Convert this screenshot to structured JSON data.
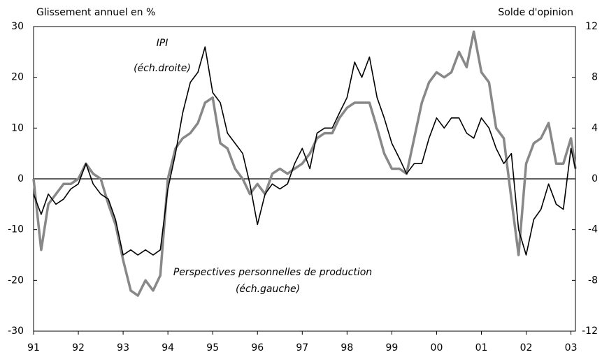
{
  "chart_data": {
    "type": "line",
    "y_label": "Glissement annuel en %",
    "y2_label": "Solde d'opinion",
    "x": [
      1991.0,
      1991.17,
      1991.33,
      1991.5,
      1991.67,
      1991.83,
      1992.0,
      1992.17,
      1992.33,
      1992.5,
      1992.67,
      1992.83,
      1993.0,
      1993.17,
      1993.33,
      1993.5,
      1993.67,
      1993.83,
      1994.0,
      1994.17,
      1994.33,
      1994.5,
      1994.67,
      1994.83,
      1995.0,
      1995.17,
      1995.33,
      1995.5,
      1995.67,
      1995.83,
      1996.0,
      1996.17,
      1996.33,
      1996.5,
      1996.67,
      1996.83,
      1997.0,
      1997.17,
      1997.33,
      1997.5,
      1997.67,
      1997.83,
      1998.0,
      1998.17,
      1998.33,
      1998.5,
      1998.67,
      1998.83,
      1999.0,
      1999.17,
      1999.33,
      1999.5,
      1999.67,
      1999.83,
      2000.0,
      2000.17,
      2000.33,
      2000.5,
      2000.67,
      2000.83,
      2001.0,
      2001.17,
      2001.33,
      2001.5,
      2001.67,
      2001.83,
      2002.0,
      2002.17,
      2002.33,
      2002.5,
      2002.67,
      2002.83,
      2003.0,
      2003.1
    ],
    "series": [
      {
        "name": "Perspectives personnelles de production",
        "note": "(éch.gauche)",
        "color": "#888888",
        "width": 3.5,
        "values": [
          0,
          -14,
          -5,
          -3,
          -1,
          -1,
          0,
          3,
          1,
          0,
          -5,
          -9,
          -16,
          -22,
          -23,
          -20,
          -22,
          -19,
          0,
          6,
          8,
          9,
          11,
          15,
          16,
          7,
          6,
          2,
          0,
          -3,
          -1,
          -3,
          1,
          2,
          1,
          2,
          3,
          5,
          8,
          9,
          9,
          12,
          14,
          15,
          15,
          15,
          10,
          5,
          2,
          2,
          1,
          8,
          15,
          19,
          21,
          20,
          21,
          25,
          22,
          29,
          21,
          19,
          10,
          8,
          -4,
          -15,
          3,
          7,
          8,
          11,
          3,
          3,
          8,
          2
        ]
      },
      {
        "name": "IPI",
        "note": "(éch.droite)",
        "color": "#000000",
        "width": 1.6,
        "axis": "y2",
        "values": [
          -1.2,
          -2.8,
          -1.2,
          -2,
          -1.6,
          -0.8,
          -0.4,
          1.2,
          -0.4,
          -1.2,
          -1.6,
          -3.2,
          -6,
          -5.6,
          -6,
          -5.6,
          -6,
          -5.6,
          -0.8,
          2,
          5.2,
          7.6,
          8.4,
          10.4,
          6.8,
          6,
          3.6,
          2.8,
          2,
          -0.4,
          -3.6,
          -1.2,
          -0.4,
          -0.8,
          -0.4,
          1.2,
          2.4,
          0.8,
          3.6,
          4,
          4,
          5.2,
          6.4,
          9.2,
          8,
          9.6,
          6.4,
          4.8,
          2.8,
          1.6,
          0.4,
          1.2,
          1.2,
          3.2,
          4.8,
          4,
          4.8,
          4.8,
          3.6,
          3.2,
          4.8,
          4,
          2.4,
          1.2,
          2,
          -4,
          -6,
          -3.2,
          -2.4,
          -0.4,
          -2,
          -2.4,
          2.4,
          0.8
        ]
      }
    ],
    "xlim": [
      1991,
      2003.1
    ],
    "xticks": [
      {
        "value": 1991,
        "label": "91"
      },
      {
        "value": 1992,
        "label": "92"
      },
      {
        "value": 1993,
        "label": "93"
      },
      {
        "value": 1994,
        "label": "94"
      },
      {
        "value": 1995,
        "label": "95"
      },
      {
        "value": 1996,
        "label": "96"
      },
      {
        "value": 1997,
        "label": "97"
      },
      {
        "value": 1998,
        "label": "98"
      },
      {
        "value": 1999,
        "label": "99"
      },
      {
        "value": 2000,
        "label": "00"
      },
      {
        "value": 2001,
        "label": "01"
      },
      {
        "value": 2002,
        "label": "02"
      },
      {
        "value": 2003,
        "label": "03"
      }
    ],
    "ylim": [
      -30,
      30
    ],
    "yticks": [
      -30,
      -20,
      -10,
      0,
      10,
      20,
      30
    ],
    "y2lim": [
      -12,
      12
    ],
    "y2ticks": [
      -12,
      -8,
      -4,
      0,
      4,
      8,
      12
    ]
  }
}
